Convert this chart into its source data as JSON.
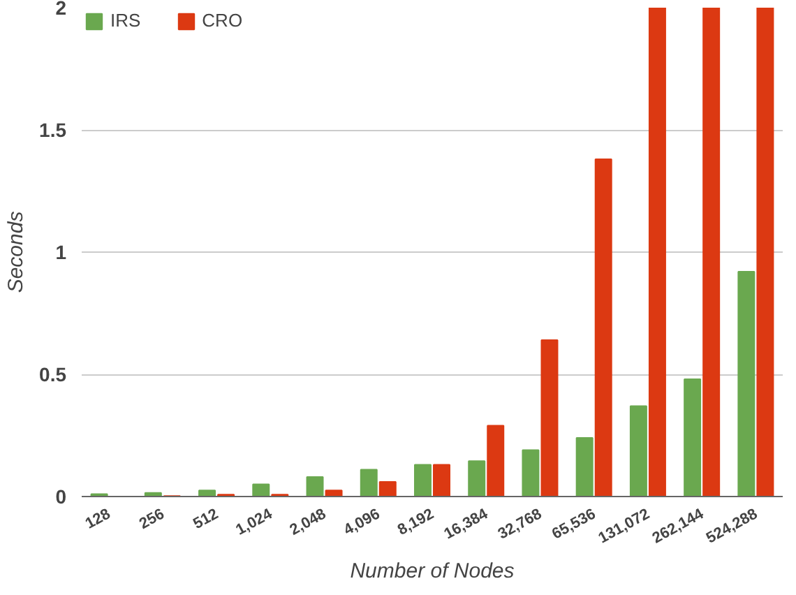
{
  "chart_data": {
    "type": "bar",
    "xlabel": "Number of Nodes",
    "ylabel": "Seconds",
    "categories": [
      "128",
      "256",
      "512",
      "1,024",
      "2,048",
      "4,096",
      "8,192",
      "16,384",
      "32,768",
      "65,536",
      "131,072",
      "262,144",
      "524,288"
    ],
    "series": [
      {
        "name": "IRS",
        "color": "#6aa84f",
        "values": [
          0.01,
          0.015,
          0.025,
          0.05,
          0.08,
          0.11,
          0.13,
          0.145,
          0.19,
          0.24,
          0.37,
          0.48,
          0.92
        ]
      },
      {
        "name": "CRO",
        "color": "#dc3912",
        "values": [
          0.0,
          0.002,
          0.008,
          0.008,
          0.025,
          0.06,
          0.13,
          0.29,
          0.64,
          1.38,
          2,
          2,
          2
        ]
      }
    ],
    "ylim": [
      0,
      2
    ],
    "yticks": [
      0,
      0.5,
      1,
      1.5,
      2
    ],
    "grid": "y",
    "legend": "top left"
  }
}
